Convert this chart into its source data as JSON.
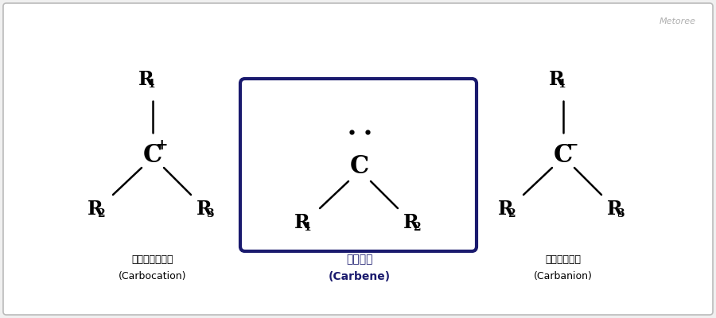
{
  "bg_color": "#f0f0f0",
  "panel_color": "#ffffff",
  "border_color": "#bbbbbb",
  "dark_navy": "#1a1a6e",
  "black": "#000000",
  "gray_text": "#b0b0b0",
  "metoree_text": "Metoree",
  "carbocation_label_jp": "カルボカチオン",
  "carbocation_label_en": "(Carbocation)",
  "carbene_label_jp": "カルベン",
  "carbene_label_en": "(Carbene)",
  "carbanion_label_jp": "カルバニオン",
  "carbanion_label_en": "(Carbanion)",
  "fig_width": 9.0,
  "fig_height": 4.0,
  "dpi": 100,
  "R_fontsize": 17,
  "sub_fontsize": 10,
  "C_fontsize": 22,
  "charge_fontsize": 13,
  "label_jp_fontsize": 9,
  "label_en_fontsize": 9,
  "bond_lw": 1.8
}
